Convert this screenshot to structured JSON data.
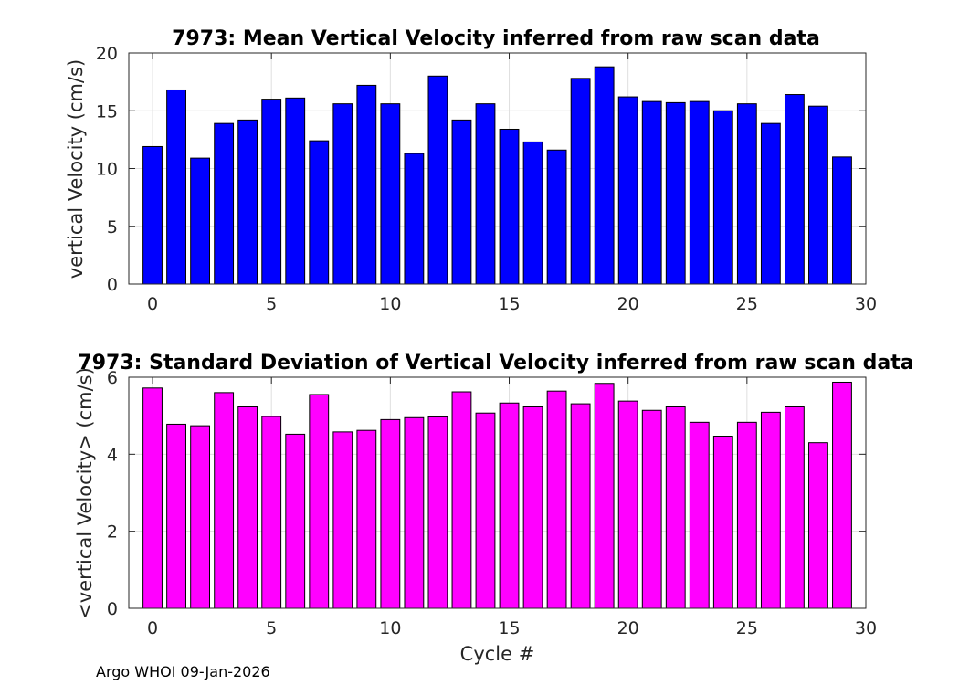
{
  "chart_data": [
    {
      "type": "bar",
      "title": "7973: Mean Vertical Velocity inferred from raw scan data",
      "xlabel": "",
      "ylabel": "vertical Velocity (cm/s)",
      "x": [
        0,
        1,
        2,
        3,
        4,
        5,
        6,
        7,
        8,
        9,
        10,
        11,
        12,
        13,
        14,
        15,
        16,
        17,
        18,
        19,
        20,
        21,
        22,
        23,
        24,
        25,
        26,
        27,
        28,
        29
      ],
      "values": [
        11.9,
        16.8,
        10.9,
        13.9,
        14.2,
        16.0,
        16.1,
        12.4,
        15.6,
        17.2,
        15.6,
        11.3,
        18.0,
        14.2,
        15.6,
        13.4,
        12.3,
        11.6,
        17.8,
        18.8,
        16.2,
        15.8,
        15.7,
        15.8,
        15.0,
        15.6,
        13.9,
        16.4,
        15.4,
        11.0
      ],
      "xlim": [
        -1,
        30
      ],
      "ylim": [
        0,
        20
      ],
      "xticks": [
        "0",
        "5",
        "10",
        "15",
        "20",
        "25",
        "30"
      ],
      "yticks": [
        "0",
        "5",
        "10",
        "15",
        "20"
      ],
      "color": "#0000ff",
      "grid": true
    },
    {
      "type": "bar",
      "title": "7973: Standard Deviation of Vertical Velocity inferred from raw scan data",
      "xlabel": "Cycle #",
      "ylabel": "<vertical Velocity> (cm/s)",
      "x": [
        0,
        1,
        2,
        3,
        4,
        5,
        6,
        7,
        8,
        9,
        10,
        11,
        12,
        13,
        14,
        15,
        16,
        17,
        18,
        19,
        20,
        21,
        22,
        23,
        24,
        25,
        26,
        27,
        28,
        29
      ],
      "values": [
        5.72,
        4.78,
        4.74,
        5.6,
        5.23,
        4.98,
        4.52,
        5.55,
        4.58,
        4.62,
        4.9,
        4.95,
        4.97,
        5.62,
        5.07,
        5.33,
        5.23,
        5.64,
        5.31,
        5.84,
        5.38,
        5.14,
        5.23,
        4.83,
        4.47,
        4.83,
        5.09,
        5.23,
        4.3,
        5.87
      ],
      "xlim": [
        -1,
        30
      ],
      "ylim": [
        0,
        6
      ],
      "xticks": [
        "0",
        "5",
        "10",
        "15",
        "20",
        "25",
        "30"
      ],
      "yticks": [
        "0",
        "2",
        "4",
        "6"
      ],
      "color": "#ff00ff",
      "grid": true
    }
  ],
  "footer": "Argo WHOI 09-Jan-2026"
}
